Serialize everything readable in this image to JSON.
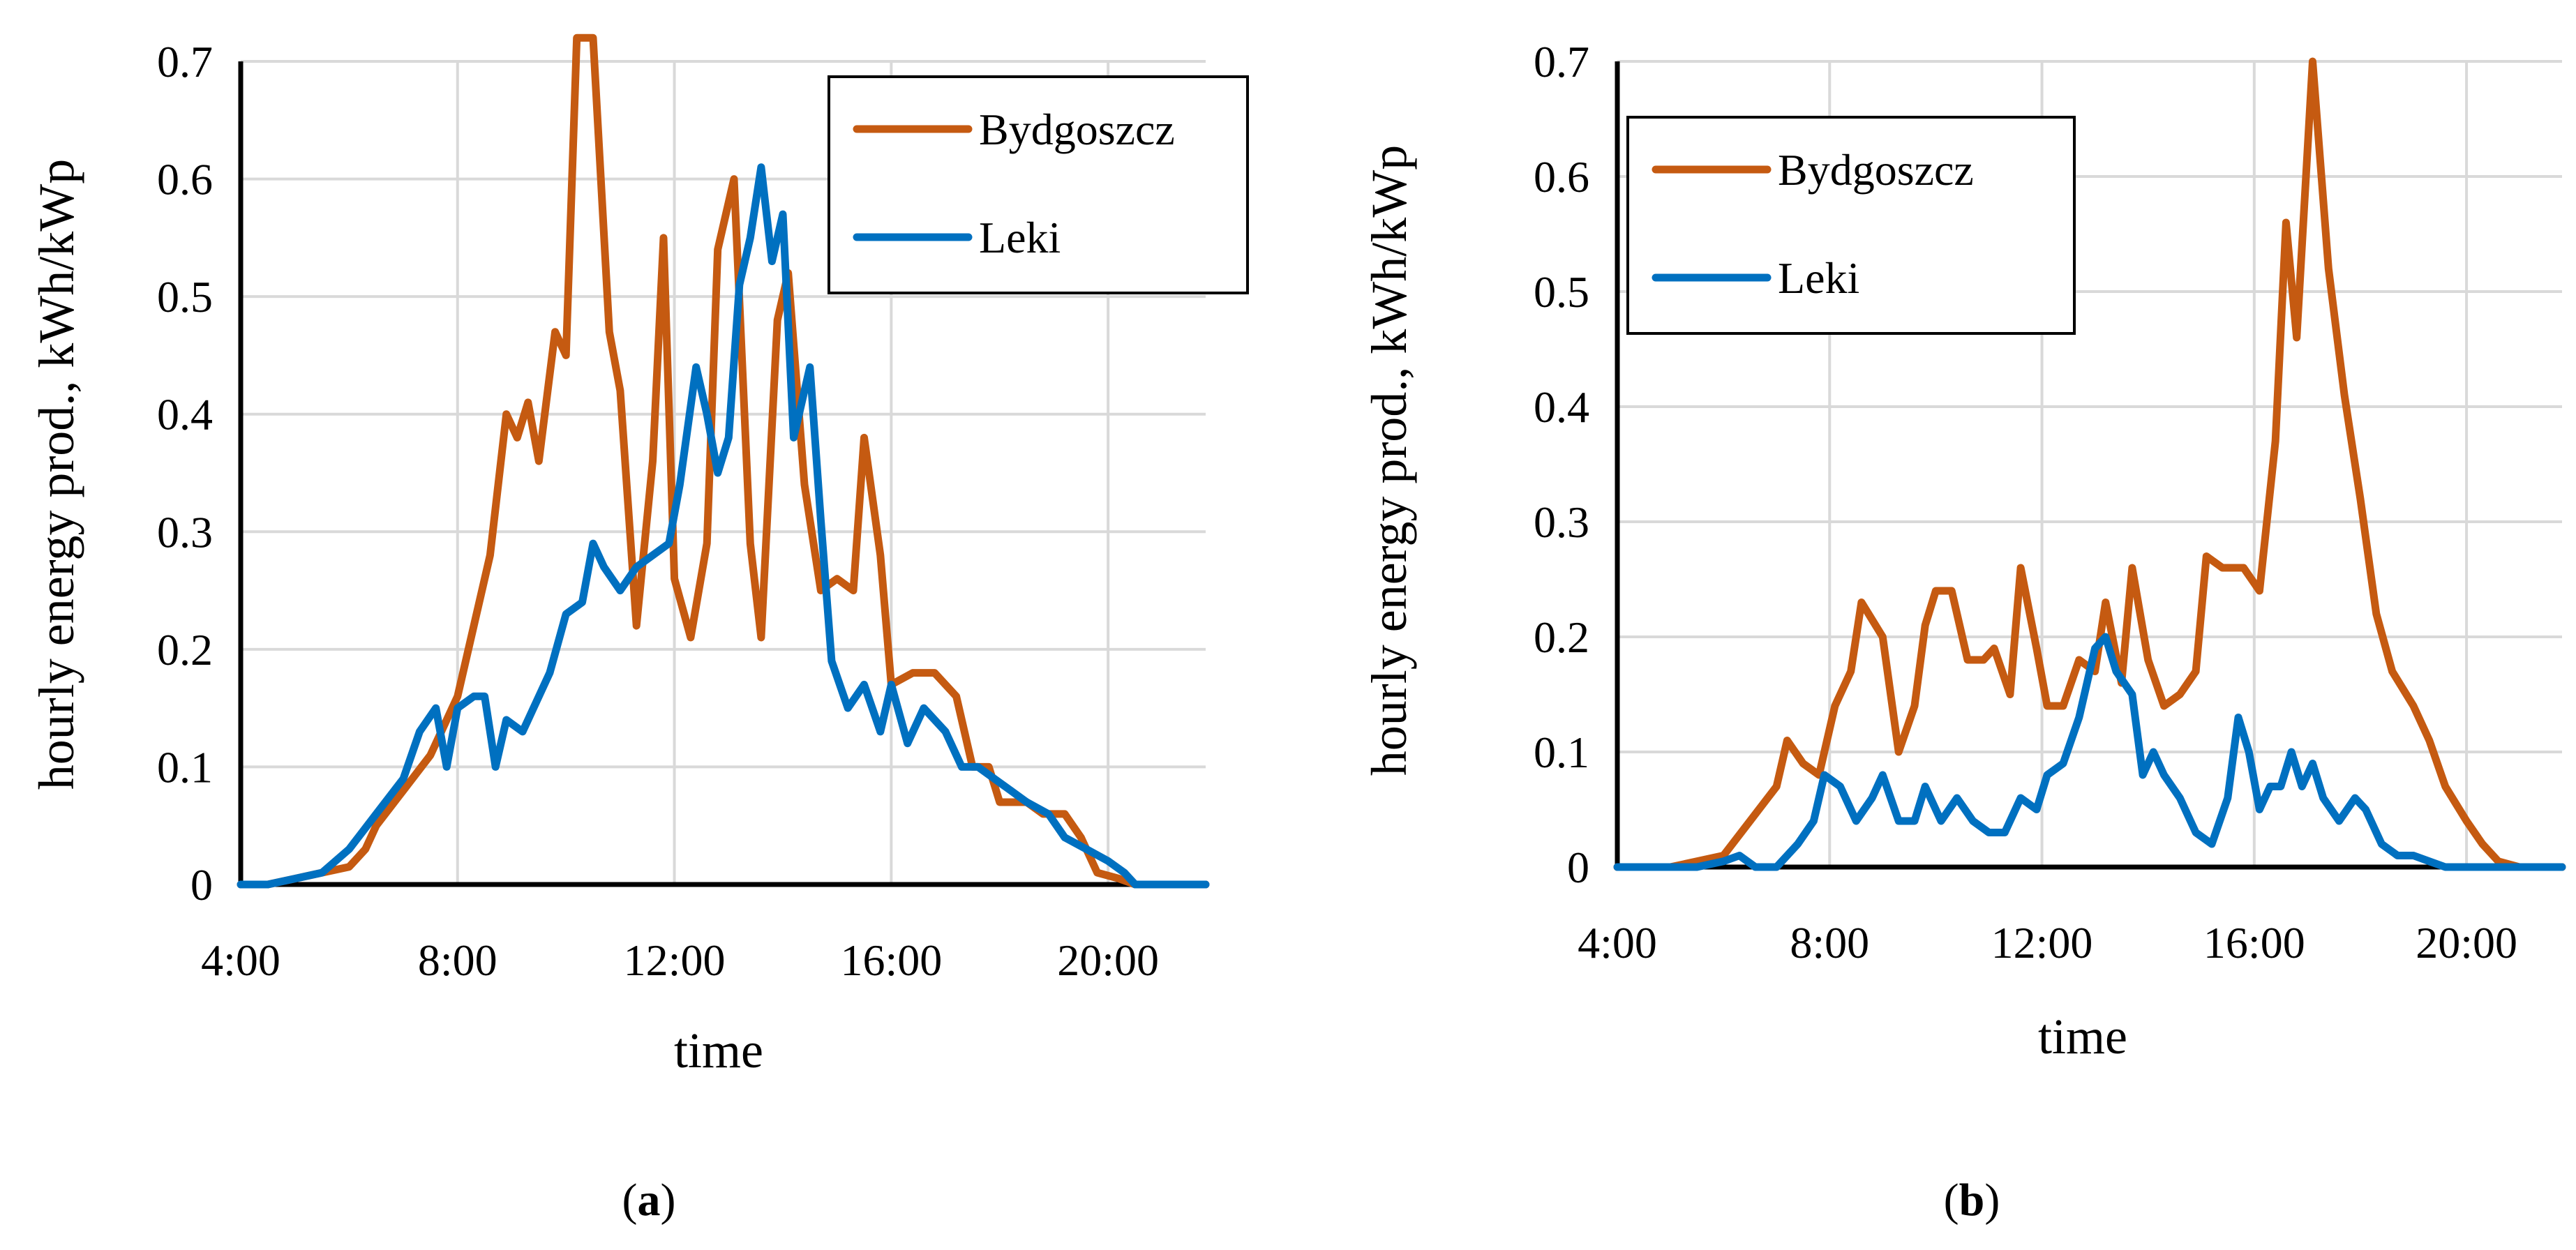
{
  "chart_data": [
    {
      "type": "line",
      "panel_label": "a",
      "xlabel": "time",
      "ylabel": "hourly energy prod., kWh/kWp",
      "x_tick_labels": [
        "4:00",
        "8:00",
        "12:00",
        "16:00",
        "20:00"
      ],
      "y_tick_labels": [
        "0",
        "0.1",
        "0.2",
        "0.3",
        "0.4",
        "0.5",
        "0.6",
        "0.7"
      ],
      "xlim": [
        4,
        21.8
      ],
      "ylim": [
        0,
        0.7
      ],
      "grid": true,
      "legend_position": "top-right",
      "series": [
        {
          "name": "Bydgoszcz",
          "color": "#c55a11",
          "points": [
            [
              4.0,
              0
            ],
            [
              4.5,
              0
            ],
            [
              5.0,
              0.005
            ],
            [
              5.5,
              0.01
            ],
            [
              6.0,
              0.015
            ],
            [
              6.3,
              0.03
            ],
            [
              6.5,
              0.05
            ],
            [
              7.0,
              0.08
            ],
            [
              7.5,
              0.11
            ],
            [
              8.0,
              0.16
            ],
            [
              8.3,
              0.22
            ],
            [
              8.6,
              0.28
            ],
            [
              8.9,
              0.4
            ],
            [
              9.1,
              0.38
            ],
            [
              9.3,
              0.41
            ],
            [
              9.5,
              0.36
            ],
            [
              9.8,
              0.47
            ],
            [
              10.0,
              0.45
            ],
            [
              10.2,
              0.72
            ],
            [
              10.5,
              0.72
            ],
            [
              10.8,
              0.47
            ],
            [
              11.0,
              0.42
            ],
            [
              11.3,
              0.22
            ],
            [
              11.6,
              0.36
            ],
            [
              11.8,
              0.55
            ],
            [
              12.0,
              0.26
            ],
            [
              12.3,
              0.21
            ],
            [
              12.6,
              0.29
            ],
            [
              12.8,
              0.54
            ],
            [
              13.1,
              0.6
            ],
            [
              13.4,
              0.29
            ],
            [
              13.6,
              0.21
            ],
            [
              13.9,
              0.48
            ],
            [
              14.1,
              0.52
            ],
            [
              14.4,
              0.34
            ],
            [
              14.7,
              0.25
            ],
            [
              15.0,
              0.26
            ],
            [
              15.3,
              0.25
            ],
            [
              15.5,
              0.38
            ],
            [
              15.8,
              0.28
            ],
            [
              16.0,
              0.17
            ],
            [
              16.4,
              0.18
            ],
            [
              16.8,
              0.18
            ],
            [
              17.2,
              0.16
            ],
            [
              17.5,
              0.1
            ],
            [
              17.8,
              0.1
            ],
            [
              18.0,
              0.07
            ],
            [
              18.5,
              0.07
            ],
            [
              18.8,
              0.06
            ],
            [
              19.2,
              0.06
            ],
            [
              19.5,
              0.04
            ],
            [
              19.8,
              0.01
            ],
            [
              20.2,
              0.005
            ],
            [
              20.5,
              0
            ],
            [
              21.8,
              0
            ]
          ]
        },
        {
          "name": "Leki",
          "color": "#0070c0",
          "points": [
            [
              4.0,
              0
            ],
            [
              4.5,
              0
            ],
            [
              5.0,
              0.005
            ],
            [
              5.5,
              0.01
            ],
            [
              6.0,
              0.03
            ],
            [
              6.5,
              0.06
            ],
            [
              7.0,
              0.09
            ],
            [
              7.3,
              0.13
            ],
            [
              7.6,
              0.15
            ],
            [
              7.8,
              0.1
            ],
            [
              8.0,
              0.15
            ],
            [
              8.3,
              0.16
            ],
            [
              8.5,
              0.16
            ],
            [
              8.7,
              0.1
            ],
            [
              8.9,
              0.14
            ],
            [
              9.2,
              0.13
            ],
            [
              9.4,
              0.15
            ],
            [
              9.7,
              0.18
            ],
            [
              10.0,
              0.23
            ],
            [
              10.3,
              0.24
            ],
            [
              10.5,
              0.29
            ],
            [
              10.7,
              0.27
            ],
            [
              11.0,
              0.25
            ],
            [
              11.3,
              0.27
            ],
            [
              11.6,
              0.28
            ],
            [
              11.9,
              0.29
            ],
            [
              12.1,
              0.34
            ],
            [
              12.4,
              0.44
            ],
            [
              12.6,
              0.4
            ],
            [
              12.8,
              0.35
            ],
            [
              13.0,
              0.38
            ],
            [
              13.2,
              0.51
            ],
            [
              13.4,
              0.55
            ],
            [
              13.6,
              0.61
            ],
            [
              13.8,
              0.53
            ],
            [
              14.0,
              0.57
            ],
            [
              14.2,
              0.38
            ],
            [
              14.5,
              0.44
            ],
            [
              14.7,
              0.31
            ],
            [
              14.9,
              0.19
            ],
            [
              15.2,
              0.15
            ],
            [
              15.5,
              0.17
            ],
            [
              15.8,
              0.13
            ],
            [
              16.0,
              0.17
            ],
            [
              16.3,
              0.12
            ],
            [
              16.6,
              0.15
            ],
            [
              17.0,
              0.13
            ],
            [
              17.3,
              0.1
            ],
            [
              17.6,
              0.1
            ],
            [
              17.9,
              0.09
            ],
            [
              18.2,
              0.08
            ],
            [
              18.5,
              0.07
            ],
            [
              18.9,
              0.06
            ],
            [
              19.2,
              0.04
            ],
            [
              19.6,
              0.03
            ],
            [
              20.0,
              0.02
            ],
            [
              20.3,
              0.01
            ],
            [
              20.5,
              0
            ],
            [
              21.8,
              0
            ]
          ]
        }
      ]
    },
    {
      "type": "line",
      "panel_label": "b",
      "xlabel": "time",
      "ylabel": "hourly energy prod., kWh/kWp",
      "x_tick_labels": [
        "4:00",
        "8:00",
        "12:00",
        "16:00",
        "20:00"
      ],
      "y_tick_labels": [
        "0",
        "0.1",
        "0.2",
        "0.3",
        "0.4",
        "0.5",
        "0.6",
        "0.7"
      ],
      "xlim": [
        4,
        21.8
      ],
      "ylim": [
        0,
        0.7
      ],
      "grid": true,
      "legend_position": "top-left",
      "series": [
        {
          "name": "Bydgoszcz",
          "color": "#c55a11",
          "points": [
            [
              4.0,
              0
            ],
            [
              5.0,
              0
            ],
            [
              5.5,
              0.005
            ],
            [
              6.0,
              0.01
            ],
            [
              6.5,
              0.04
            ],
            [
              7.0,
              0.07
            ],
            [
              7.2,
              0.11
            ],
            [
              7.5,
              0.09
            ],
            [
              7.8,
              0.08
            ],
            [
              8.1,
              0.14
            ],
            [
              8.4,
              0.17
            ],
            [
              8.6,
              0.23
            ],
            [
              9.0,
              0.2
            ],
            [
              9.3,
              0.1
            ],
            [
              9.6,
              0.14
            ],
            [
              9.8,
              0.21
            ],
            [
              10.0,
              0.24
            ],
            [
              10.3,
              0.24
            ],
            [
              10.6,
              0.18
            ],
            [
              10.9,
              0.18
            ],
            [
              11.1,
              0.19
            ],
            [
              11.4,
              0.15
            ],
            [
              11.6,
              0.26
            ],
            [
              11.9,
              0.19
            ],
            [
              12.1,
              0.14
            ],
            [
              12.4,
              0.14
            ],
            [
              12.7,
              0.18
            ],
            [
              13.0,
              0.17
            ],
            [
              13.2,
              0.23
            ],
            [
              13.5,
              0.16
            ],
            [
              13.7,
              0.26
            ],
            [
              14.0,
              0.18
            ],
            [
              14.3,
              0.14
            ],
            [
              14.6,
              0.15
            ],
            [
              14.9,
              0.17
            ],
            [
              15.1,
              0.27
            ],
            [
              15.4,
              0.26
            ],
            [
              15.8,
              0.26
            ],
            [
              16.1,
              0.24
            ],
            [
              16.4,
              0.37
            ],
            [
              16.6,
              0.56
            ],
            [
              16.8,
              0.46
            ],
            [
              17.1,
              0.7
            ],
            [
              17.4,
              0.52
            ],
            [
              17.7,
              0.41
            ],
            [
              18.0,
              0.32
            ],
            [
              18.3,
              0.22
            ],
            [
              18.6,
              0.17
            ],
            [
              19.0,
              0.14
            ],
            [
              19.3,
              0.11
            ],
            [
              19.6,
              0.07
            ],
            [
              20.0,
              0.04
            ],
            [
              20.3,
              0.02
            ],
            [
              20.6,
              0.005
            ],
            [
              21.0,
              0
            ],
            [
              21.8,
              0
            ]
          ]
        },
        {
          "name": "Leki",
          "color": "#0070c0",
          "points": [
            [
              4.0,
              0
            ],
            [
              5.5,
              0
            ],
            [
              6.0,
              0.005
            ],
            [
              6.3,
              0.01
            ],
            [
              6.6,
              0
            ],
            [
              7.0,
              0
            ],
            [
              7.4,
              0.02
            ],
            [
              7.7,
              0.04
            ],
            [
              7.9,
              0.08
            ],
            [
              8.2,
              0.07
            ],
            [
              8.5,
              0.04
            ],
            [
              8.8,
              0.06
            ],
            [
              9.0,
              0.08
            ],
            [
              9.3,
              0.04
            ],
            [
              9.6,
              0.04
            ],
            [
              9.8,
              0.07
            ],
            [
              10.1,
              0.04
            ],
            [
              10.4,
              0.06
            ],
            [
              10.7,
              0.04
            ],
            [
              11.0,
              0.03
            ],
            [
              11.3,
              0.03
            ],
            [
              11.6,
              0.06
            ],
            [
              11.9,
              0.05
            ],
            [
              12.1,
              0.08
            ],
            [
              12.4,
              0.09
            ],
            [
              12.7,
              0.13
            ],
            [
              13.0,
              0.19
            ],
            [
              13.2,
              0.2
            ],
            [
              13.4,
              0.17
            ],
            [
              13.7,
              0.15
            ],
            [
              13.9,
              0.08
            ],
            [
              14.1,
              0.1
            ],
            [
              14.3,
              0.08
            ],
            [
              14.6,
              0.06
            ],
            [
              14.9,
              0.03
            ],
            [
              15.2,
              0.02
            ],
            [
              15.5,
              0.06
            ],
            [
              15.7,
              0.13
            ],
            [
              15.9,
              0.1
            ],
            [
              16.1,
              0.05
            ],
            [
              16.3,
              0.07
            ],
            [
              16.5,
              0.07
            ],
            [
              16.7,
              0.1
            ],
            [
              16.9,
              0.07
            ],
            [
              17.1,
              0.09
            ],
            [
              17.3,
              0.06
            ],
            [
              17.6,
              0.04
            ],
            [
              17.9,
              0.06
            ],
            [
              18.1,
              0.05
            ],
            [
              18.4,
              0.02
            ],
            [
              18.7,
              0.01
            ],
            [
              19.0,
              0.01
            ],
            [
              19.3,
              0.005
            ],
            [
              19.6,
              0
            ],
            [
              21.8,
              0
            ]
          ]
        }
      ]
    }
  ]
}
